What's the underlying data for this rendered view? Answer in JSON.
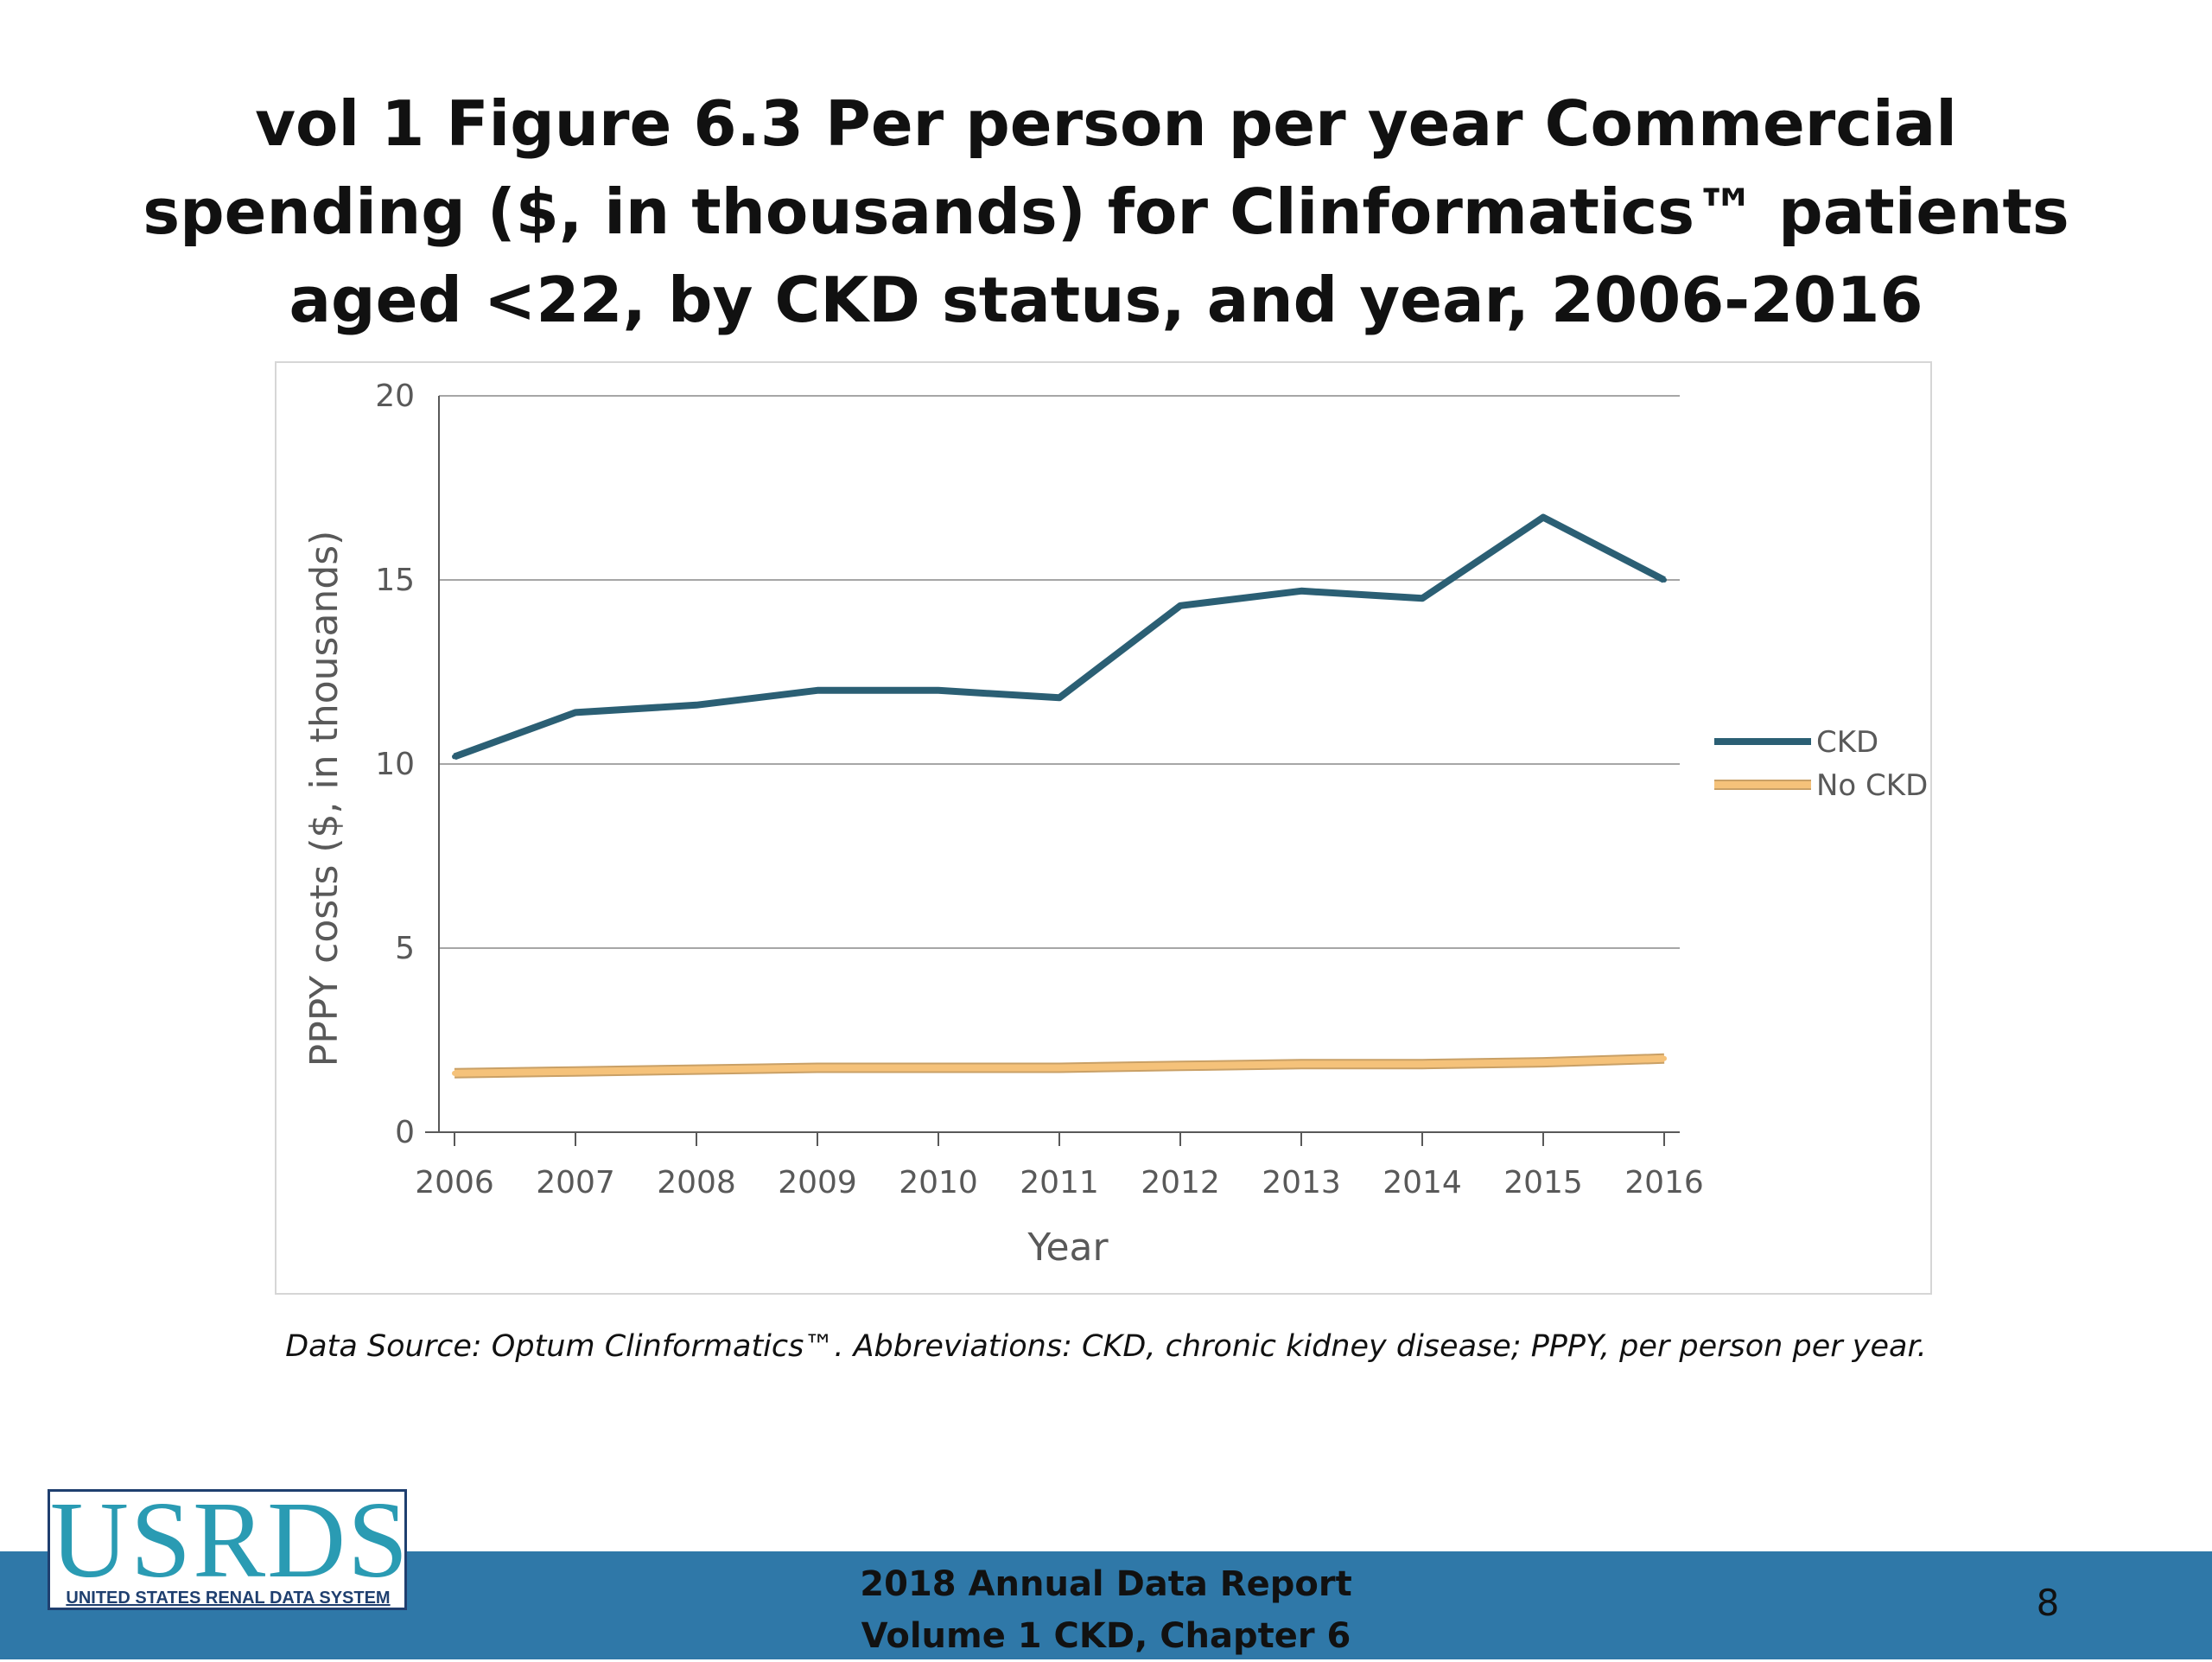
{
  "slide": {
    "title": "vol 1 Figure 6.3 Per person per year Commercial spending ($, in thousands) for Clinformatics™ patients aged <22, by CKD status, and year, 2006-2016",
    "source_note": "Data Source: Optum Clinformatics™. Abbreviations: CKD, chronic kidney disease; PPPY, per person per year.",
    "footer_line1": "2018 Annual Data Report",
    "footer_line2": "Volume 1 CKD, Chapter 6",
    "page_number": "8",
    "logo_text": "USRDS",
    "logo_subtext": "UNITED STATES RENAL DATA SYSTEM",
    "footer_color": "#2f78a8"
  },
  "chart_data": {
    "type": "line",
    "title": "",
    "xlabel": "Year",
    "ylabel": "PPPY costs ($, in thousands)",
    "x": [
      2006,
      2007,
      2008,
      2009,
      2010,
      2011,
      2012,
      2013,
      2014,
      2015,
      2016
    ],
    "ylim": [
      0,
      20
    ],
    "yticks": [
      0,
      5,
      10,
      15,
      20
    ],
    "grid": "horizontal",
    "legend_position": "right",
    "series": [
      {
        "name": "CKD",
        "color": "#2b5f74",
        "values": [
          10.2,
          11.4,
          11.6,
          12.0,
          12.0,
          11.8,
          14.3,
          14.7,
          14.5,
          16.7,
          15.0
        ]
      },
      {
        "name": "No CKD",
        "color": "#f5c27a",
        "values": [
          1.6,
          1.65,
          1.7,
          1.75,
          1.75,
          1.75,
          1.8,
          1.85,
          1.85,
          1.9,
          2.0
        ]
      }
    ]
  }
}
